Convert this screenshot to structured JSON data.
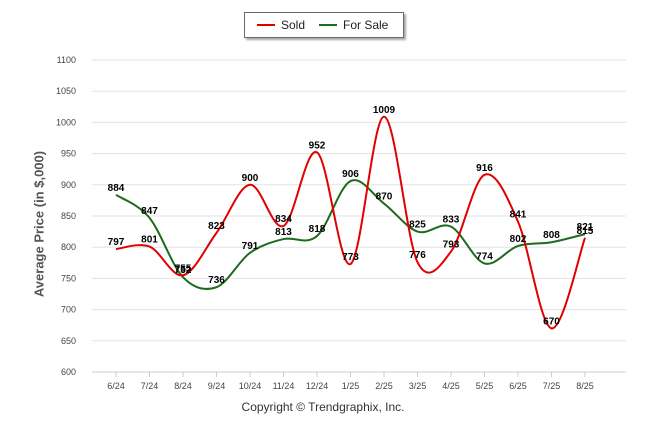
{
  "legend": {
    "sold": "Sold",
    "for_sale": "For Sale"
  },
  "footer": {
    "copyright": "Copyright © Trendgraphix, Inc."
  },
  "chart_data": {
    "type": "line",
    "title": "",
    "xlabel": "",
    "ylabel": "Average Price (in $,000)",
    "ylim": [
      600,
      1100
    ],
    "yticks": [
      600,
      650,
      700,
      750,
      800,
      850,
      900,
      950,
      1000,
      1050,
      1100
    ],
    "grid": true,
    "legend_position": "top-center",
    "categories": [
      "6/24",
      "7/24",
      "8/24",
      "9/24",
      "10/24",
      "11/24",
      "12/24",
      "1/25",
      "2/25",
      "3/25",
      "4/25",
      "5/25",
      "6/25",
      "7/25",
      "8/25"
    ],
    "series": [
      {
        "name": "Sold",
        "color": "#e00000",
        "values": [
          797,
          801,
          755,
          823,
          900,
          834,
          952,
          773,
          1009,
          776,
          793,
          916,
          841,
          670,
          815
        ]
      },
      {
        "name": "For Sale",
        "color": "#1d6b1d",
        "values": [
          884,
          847,
          752,
          736,
          791,
          813,
          818,
          906,
          870,
          825,
          833,
          774,
          802,
          808,
          821
        ]
      }
    ]
  }
}
